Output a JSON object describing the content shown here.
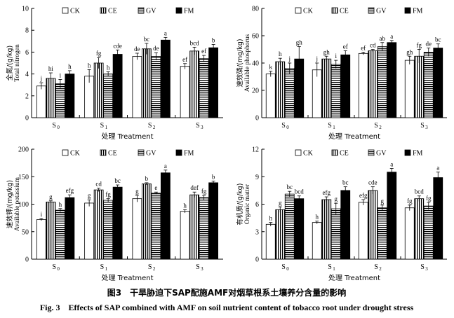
{
  "caption": {
    "cn": "图3　干旱胁迫下SAP配施AMF对烟草根系土壤养分含量的影响",
    "en": "Fig. 3　Effects of SAP combined with AMF on soil nutrient content of tobacco root under drought stress"
  },
  "legend": [
    "CK",
    "CE",
    "GV",
    "FM"
  ],
  "xlabel": "处理 Treatment",
  "categories": [
    "S",
    "S",
    "S",
    "S"
  ],
  "category_subs": [
    "0",
    "1",
    "2",
    "3"
  ],
  "chart_data": [
    {
      "type": "bar",
      "ylabel_cn": "全氮/(g/kg)",
      "ylabel_en": "Total nitrogen",
      "ylim": [
        0,
        10
      ],
      "yticks": [
        0,
        2,
        4,
        6,
        8,
        10
      ],
      "series": [
        {
          "name": "CK",
          "values": [
            2.9,
            3.8,
            5.6,
            4.7
          ],
          "errors": [
            0.3,
            0.6,
            0.3,
            0.25
          ],
          "letters": [
            "j",
            "h",
            "de",
            "ef"
          ]
        },
        {
          "name": "CE",
          "values": [
            3.6,
            5.0,
            6.3,
            6.1
          ],
          "errors": [
            0.5,
            0.5,
            0.5,
            0.35
          ],
          "letters": [
            "hi",
            "fg",
            "bc",
            "bcd"
          ]
        },
        {
          "name": "GV",
          "values": [
            3.1,
            4.0,
            5.6,
            5.4
          ],
          "errors": [
            0.4,
            0.2,
            0.35,
            0.3
          ],
          "letters": [
            "i",
            "h",
            "de",
            "ef"
          ]
        },
        {
          "name": "FM",
          "values": [
            4.0,
            5.8,
            7.1,
            6.4
          ],
          "errors": [
            0.3,
            0.4,
            0.25,
            0.3
          ],
          "letters": [
            "h",
            "cde",
            "a",
            "b"
          ]
        }
      ]
    },
    {
      "type": "bar",
      "ylabel_cn": "速效磷/(mg/kg)",
      "ylabel_en": "Available phosphorus",
      "ylim": [
        0,
        80
      ],
      "yticks": [
        0,
        20,
        40,
        60,
        80
      ],
      "series": [
        {
          "name": "CK",
          "values": [
            32,
            35,
            47,
            42
          ],
          "errors": [
            2,
            5,
            1,
            3
          ],
          "letters": [
            "k",
            "j",
            "ef",
            "gh"
          ]
        },
        {
          "name": "CE",
          "values": [
            41,
            43,
            49,
            45
          ],
          "errors": [
            2.5,
            2,
            1,
            5
          ],
          "letters": [
            "h",
            "gh",
            "cd",
            "fg"
          ]
        },
        {
          "name": "GV",
          "values": [
            36,
            39,
            52,
            48
          ],
          "errors": [
            4,
            3,
            3,
            3
          ],
          "letters": [
            "j",
            "i",
            "ab",
            "de"
          ]
        },
        {
          "name": "FM",
          "values": [
            43,
            46,
            55,
            51
          ],
          "errors": [
            9,
            3,
            1.5,
            3
          ],
          "letters": [
            "gh",
            "ef",
            "a",
            "bc"
          ]
        }
      ]
    },
    {
      "type": "bar",
      "ylabel_cn": "速效钾/(mg/kg)",
      "ylabel_en": "Available potassium",
      "ylim": [
        0,
        200
      ],
      "yticks": [
        0,
        50,
        100,
        150,
        200
      ],
      "series": [
        {
          "name": "CK",
          "values": [
            72,
            102,
            110,
            87
          ],
          "errors": [
            2,
            6,
            6,
            3
          ],
          "letters": [
            "i",
            "g",
            "g",
            "h"
          ]
        },
        {
          "name": "CE",
          "values": [
            104,
            126,
            137,
            117
          ],
          "errors": [
            2,
            3,
            2,
            5
          ],
          "letters": [
            "g",
            "cd",
            "b",
            "def"
          ]
        },
        {
          "name": "GV",
          "values": [
            89,
            107,
            120,
            112
          ],
          "errors": [
            3,
            3,
            2,
            4
          ],
          "letters": [
            "h",
            "fg",
            "e",
            "fg"
          ]
        },
        {
          "name": "FM",
          "values": [
            112,
            131,
            157,
            139
          ],
          "errors": [
            5,
            4,
            5,
            3
          ],
          "letters": [
            "efg",
            "bc",
            "a",
            "b"
          ]
        }
      ]
    },
    {
      "type": "bar",
      "ylabel_cn": "有机质/(g/kg)",
      "ylabel_en": "Organic matter",
      "ylim": [
        0,
        12
      ],
      "yticks": [
        0,
        3,
        6,
        9,
        12
      ],
      "series": [
        {
          "name": "CK",
          "values": [
            3.8,
            4.0,
            6.2,
            5.6
          ],
          "errors": [
            0.2,
            0.15,
            0.3,
            0.3
          ],
          "letters": [
            "h",
            "h",
            "efg",
            "fg"
          ]
        },
        {
          "name": "CE",
          "values": [
            5.4,
            6.5,
            7.5,
            6.6
          ],
          "errors": [
            0.3,
            0.3,
            0.4,
            0.3
          ],
          "letters": [
            "g",
            "efg",
            "cde",
            "bcd"
          ]
        },
        {
          "name": "GV",
          "values": [
            7.1,
            5.5,
            5.6,
            5.8
          ],
          "errors": [
            0.3,
            0.6,
            0.3,
            0.4
          ],
          "letters": [
            "bc",
            "g",
            "g",
            "fg"
          ]
        },
        {
          "name": "FM",
          "values": [
            6.6,
            7.5,
            9.5,
            8.9
          ],
          "errors": [
            0.3,
            0.4,
            0.4,
            0.6
          ],
          "letters": [
            "bcd",
            "bc",
            "a",
            "a"
          ]
        }
      ]
    }
  ]
}
